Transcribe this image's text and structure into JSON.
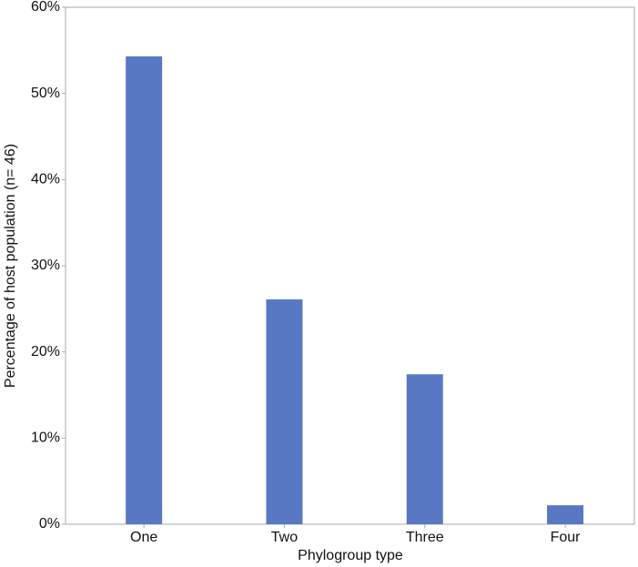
{
  "chart_data": {
    "type": "bar",
    "x_label": "Phylogroup type",
    "y_label": "Percentage of host population (n= 46)",
    "categories": [
      "One",
      "Two",
      "Three",
      "Four"
    ],
    "values": [
      54.3,
      26.1,
      17.4,
      2.2
    ],
    "color": "#5878c4",
    "ylim": [
      0,
      60
    ],
    "yticks": [
      {
        "value": 0,
        "label": "0%"
      },
      {
        "value": 10,
        "label": "10%"
      },
      {
        "value": 20,
        "label": "20%"
      },
      {
        "value": 30,
        "label": "30%"
      },
      {
        "value": 40,
        "label": "40%"
      },
      {
        "value": 50,
        "label": "50%"
      },
      {
        "value": 60,
        "label": "60%"
      }
    ],
    "grid": false
  }
}
